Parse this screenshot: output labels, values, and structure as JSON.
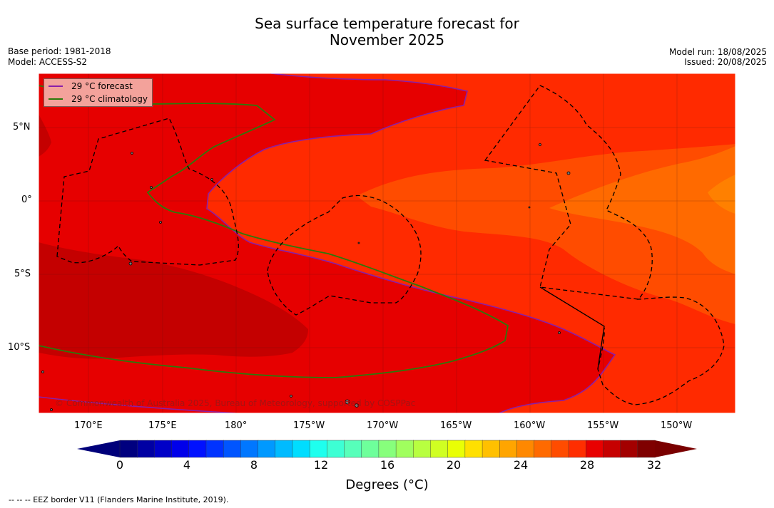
{
  "title": {
    "line1": "Sea surface temperature forecast for",
    "line2": "November 2025"
  },
  "meta_left": {
    "base_period": "Base period: 1981-2018",
    "model": "Model: ACCESS-S2"
  },
  "meta_right": {
    "model_run": "Model run: 18/08/2025",
    "issued": "Issued: 20/08/2025"
  },
  "legend": {
    "forecast": "29 °C  forecast",
    "climatology": "29 °C  climatology",
    "forecast_color": "#8a1fa8",
    "climatology_color": "#2b7a0b"
  },
  "map": {
    "lat_labels": [
      "5°N",
      "0°",
      "5°S",
      "10°S"
    ],
    "lon_labels": [
      "170°E",
      "175°E",
      "180°",
      "175°W",
      "170°W",
      "165°W",
      "160°W",
      "155°W",
      "150°W"
    ],
    "copyright": "© Commonwealth of Australia 2025, Bureau of Meteorology, supported by COSPPac"
  },
  "colorbar": {
    "tick_labels": [
      "0",
      "4",
      "8",
      "12",
      "16",
      "20",
      "24",
      "28",
      "32"
    ],
    "title": "Degrees (°C)",
    "colors": [
      "#00007f",
      "#0000a3",
      "#0000c7",
      "#0000ea",
      "#0011ff",
      "#0033ff",
      "#0055ff",
      "#0077ff",
      "#0099ff",
      "#00bbff",
      "#00ddff",
      "#1effee",
      "#3dffd4",
      "#57ffba",
      "#6eff9b",
      "#87ff7c",
      "#a0ff5e",
      "#b8ff40",
      "#d0ff22",
      "#e9ff05",
      "#ffe000",
      "#ffc000",
      "#ffa500",
      "#ff8800",
      "#ff6a00",
      "#ff4c00",
      "#ff2e00",
      "#e80000",
      "#c60000",
      "#a30000",
      "#7f0000"
    ],
    "under_color": "#00007a",
    "over_color": "#7a0000"
  },
  "footnote": "--  --  -- EEZ border V11 (Flanders Marine Institute, 2019)."
}
